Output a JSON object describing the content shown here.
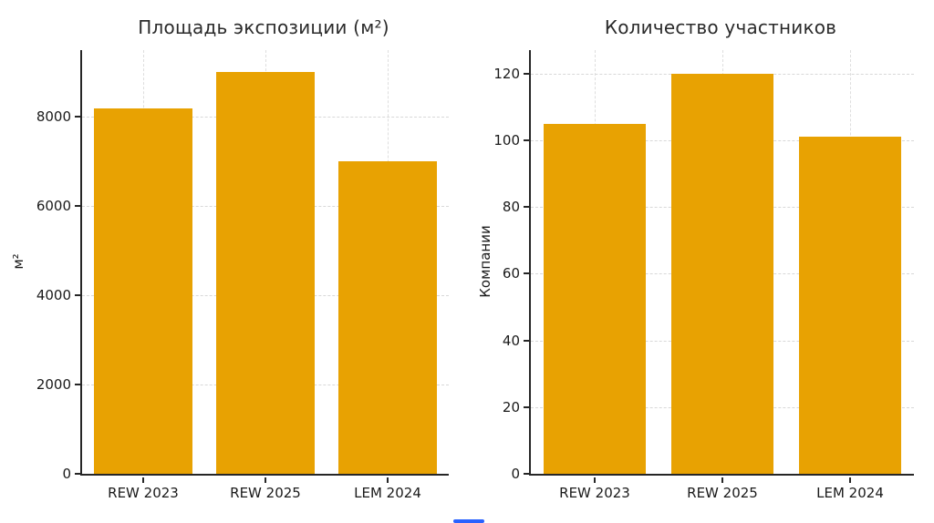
{
  "page": {
    "background": "#ffffff",
    "bottom_mark_color": "#2962ff"
  },
  "chart_data": [
    {
      "type": "bar",
      "title": "Площадь экспозиции (м²)",
      "ylabel": "м²",
      "xlabel": "",
      "categories": [
        "REW 2023",
        "REW 2025",
        "LEM 2024"
      ],
      "values": [
        8200,
        9000,
        7000
      ],
      "yticks": [
        0,
        2000,
        4000,
        6000,
        8000
      ],
      "ylim": [
        0,
        9500
      ],
      "bar_color": "#E8A202",
      "grid": true,
      "grid_style": "dashed",
      "legend": "none"
    },
    {
      "type": "bar",
      "title": "Количество участников",
      "ylabel": "Компании",
      "xlabel": "",
      "categories": [
        "REW 2023",
        "REW 2025",
        "LEM 2024"
      ],
      "values": [
        105,
        120,
        101
      ],
      "yticks": [
        0,
        20,
        40,
        60,
        80,
        100,
        120
      ],
      "ylim": [
        0,
        127
      ],
      "bar_color": "#E8A202",
      "grid": true,
      "grid_style": "dashed",
      "legend": "none"
    }
  ]
}
